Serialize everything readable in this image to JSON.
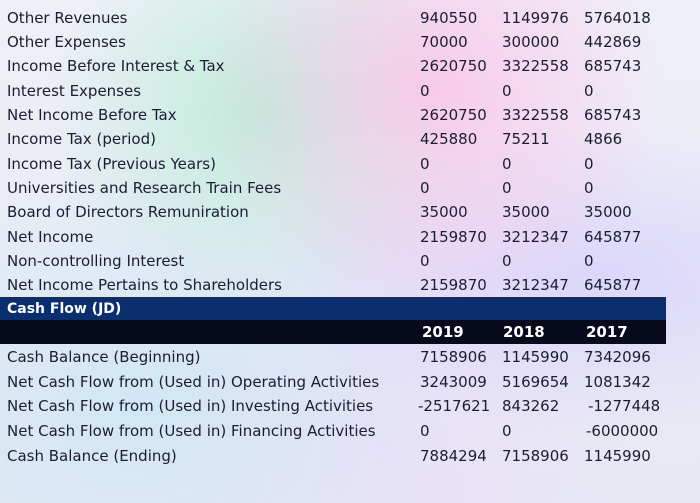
{
  "income_rows": [
    {
      "label": "Other Revenues",
      "v1": "940550",
      "v2": "1149976",
      "v3": "5764018"
    },
    {
      "label": "Other Expenses",
      "v1": "70000",
      "v2": "300000",
      "v3": "442869"
    },
    {
      "label": "Income Before Interest & Tax",
      "v1": "2620750",
      "v2": "3322558",
      "v3": "685743"
    },
    {
      "label": "Interest Expenses",
      "v1": "0",
      "v2": "0",
      "v3": "0"
    },
    {
      "label": "Net Income Before Tax",
      "v1": "2620750",
      "v2": "3322558",
      "v3": "685743"
    },
    {
      "label": "Income Tax (period)",
      "v1": "425880",
      "v2": "75211",
      "v3": "4866"
    },
    {
      "label": "Income Tax (Previous Years)",
      "v1": "0",
      "v2": "0",
      "v3": "0"
    },
    {
      "label": "Universities and Research Train Fees",
      "v1": "0",
      "v2": "0",
      "v3": "0"
    },
    {
      "label": "Board of Directors Remuniration",
      "v1": "35000",
      "v2": "35000",
      "v3": "35000"
    },
    {
      "label": "Net Income",
      "v1": "2159870",
      "v2": "3212347",
      "v3": "645877"
    },
    {
      "label": "Non-controlling Interest",
      "v1": "0",
      "v2": "0",
      "v3": "0"
    },
    {
      "label": "Net Income Pertains to Shareholders",
      "v1": "2159870",
      "v2": "3212347",
      "v3": "645877"
    }
  ],
  "cash_flow": {
    "title": "Cash Flow (JD)",
    "years": [
      "2019",
      "2018",
      "2017"
    ],
    "rows": [
      {
        "label": "Cash Balance (Beginning)",
        "v1": "7158906",
        "v2": "1145990",
        "v3": "7342096"
      },
      {
        "label": "Net Cash Flow from (Used in) Operating Activities",
        "v1": "3243009",
        "v2": "5169654",
        "v3": "1081342"
      },
      {
        "label": "Net Cash Flow from (Used in) Investing Activities",
        "v1": "-2517621",
        "v2": "843262",
        "v3": "-1277448"
      },
      {
        "label": "Net Cash Flow from (Used in) Financing Activities",
        "v1": "0",
        "v2": "0",
        "v3": "-6000000"
      },
      {
        "label": "Cash Balance (Ending)",
        "v1": "7884294",
        "v2": "7158906",
        "v3": "1145990"
      }
    ]
  }
}
